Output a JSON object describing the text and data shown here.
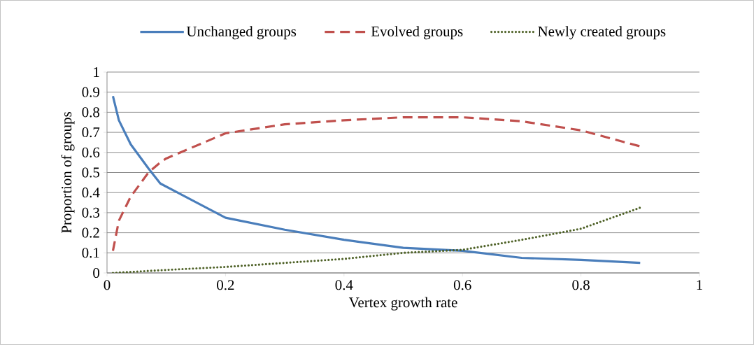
{
  "chart_data": {
    "type": "line",
    "xlabel": "Vertex growth rate",
    "ylabel": "Proportion of groups",
    "series": [
      {
        "name": "Unchanged groups",
        "color": "#4a7ebb",
        "line_style": "solid",
        "x": [
          0.01,
          0.02,
          0.04,
          0.07,
          0.09,
          0.2,
          0.3,
          0.4,
          0.5,
          0.6,
          0.7,
          0.8,
          0.9
        ],
        "values": [
          0.88,
          0.76,
          0.64,
          0.52,
          0.445,
          0.275,
          0.215,
          0.165,
          0.125,
          0.11,
          0.075,
          0.065,
          0.05
        ]
      },
      {
        "name": "Evolved groups",
        "color": "#c0504d",
        "line_style": "dashed",
        "x": [
          0.01,
          0.02,
          0.04,
          0.07,
          0.09,
          0.1,
          0.2,
          0.3,
          0.4,
          0.5,
          0.6,
          0.7,
          0.8,
          0.9
        ],
        "values": [
          0.11,
          0.26,
          0.38,
          0.5,
          0.55,
          0.57,
          0.695,
          0.74,
          0.76,
          0.775,
          0.775,
          0.755,
          0.71,
          0.63
        ]
      },
      {
        "name": "Newly created groups",
        "color": "#4f6228",
        "line_style": "dotted",
        "x": [
          0.01,
          0.1,
          0.2,
          0.3,
          0.4,
          0.5,
          0.6,
          0.7,
          0.8,
          0.9
        ],
        "values": [
          0.0,
          0.015,
          0.03,
          0.05,
          0.07,
          0.1,
          0.115,
          0.165,
          0.22,
          0.325
        ]
      }
    ],
    "xlim": [
      0,
      1
    ],
    "xticks": [
      0,
      0.2,
      0.4,
      0.6,
      0.8,
      1
    ],
    "ylim": [
      0,
      1
    ],
    "yticks": [
      0,
      0.1,
      0.2,
      0.3,
      0.4,
      0.5,
      0.6,
      0.7,
      0.8,
      0.9,
      1
    ],
    "grid": "y",
    "legend": "top",
    "marker": "none"
  }
}
